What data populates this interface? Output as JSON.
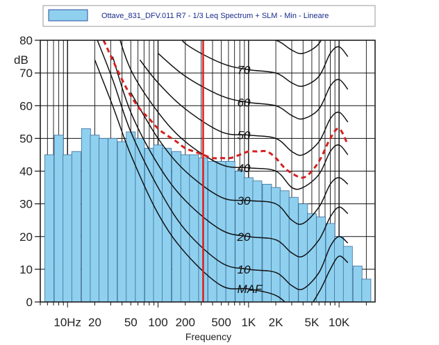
{
  "chart_data": {
    "type": "bar",
    "legend": {
      "label": "Ottave_831_DFV.011 R7 - 1/3 Leq Spectrum + SLM - Min - Lineare",
      "color": "#8fd0ef",
      "placement": "top"
    },
    "xlabel": "Frequency",
    "ylabel": "dB",
    "ylim": [
      0,
      80
    ],
    "yticks": [
      0,
      10,
      20,
      30,
      40,
      50,
      60,
      70,
      80
    ],
    "xscale": "log",
    "xlim": [
      5,
      25000
    ],
    "xtick_labels": [
      "10Hz",
      "20",
      "50",
      "100",
      "200",
      "500",
      "1K",
      "2K",
      "5K",
      "10K"
    ],
    "xtick_values": [
      10,
      20,
      50,
      100,
      200,
      500,
      1000,
      2000,
      5000,
      10000
    ],
    "grid": true,
    "bar_color": "#8fd0ef",
    "bars": {
      "freqs": [
        6.3,
        8,
        10,
        12.5,
        16,
        20,
        25,
        31.5,
        40,
        50,
        63,
        80,
        100,
        125,
        160,
        200,
        250,
        315,
        400,
        500,
        630,
        800,
        1000,
        1250,
        1600,
        2000,
        2500,
        3150,
        4000,
        5000,
        6300,
        8000,
        10000,
        12500,
        16000,
        20000
      ],
      "values": [
        45,
        51,
        45,
        46,
        53,
        51,
        50,
        50,
        49,
        52,
        50,
        47,
        48,
        47,
        46,
        45,
        45,
        44,
        43,
        43,
        43,
        40,
        38,
        37,
        36,
        35,
        34,
        32,
        30,
        27,
        26,
        24,
        20,
        17,
        11,
        7
      ]
    },
    "marker_line": {
      "freq": 315,
      "color": "#e01b1b"
    },
    "contour_color": "#111111",
    "contours": [
      {
        "label": "MAF",
        "freqs": [
          20,
          31.5,
          50,
          100,
          200,
          500,
          1000,
          2000,
          3000,
          4000,
          6000,
          8000,
          10000,
          12500
        ],
        "values": [
          74,
          60,
          45,
          27,
          15,
          5,
          4,
          2,
          -2,
          -4,
          3,
          10,
          14,
          12
        ]
      },
      {
        "label": "10",
        "freqs": [
          20,
          31.5,
          50,
          100,
          200,
          500,
          1000,
          2000,
          3000,
          4000,
          6000,
          8000,
          10000,
          12500
        ],
        "values": [
          82,
          68,
          52,
          35,
          22,
          12,
          10,
          9,
          5,
          4,
          9,
          17,
          20,
          18
        ]
      },
      {
        "label": "20",
        "freqs": [
          31.5,
          50,
          100,
          200,
          500,
          1000,
          2000,
          3000,
          4000,
          6000,
          8000,
          10000,
          12500
        ],
        "values": [
          75,
          58,
          42,
          31,
          22,
          20,
          19,
          15,
          14,
          19,
          26,
          29,
          27
        ]
      },
      {
        "label": "30",
        "freqs": [
          50,
          100,
          200,
          500,
          1000,
          2000,
          3000,
          4000,
          6000,
          8000,
          10000,
          12500
        ],
        "values": [
          64,
          50,
          40,
          32,
          31,
          30,
          25,
          24,
          29,
          36,
          38,
          36
        ]
      },
      {
        "label": "40",
        "freqs": [
          20,
          31.5,
          50,
          100,
          200,
          500,
          1000,
          2000,
          3000,
          4000,
          6000,
          8000,
          10000,
          12500
        ],
        "values": [
          100,
          87,
          71,
          58,
          49,
          42,
          41,
          40,
          35,
          35,
          39,
          46,
          48,
          45
        ]
      },
      {
        "label": "50",
        "freqs": [
          63,
          100,
          200,
          500,
          1000,
          2000,
          3000,
          4000,
          6000,
          8000,
          10000,
          12500
        ],
        "values": [
          74,
          67,
          59,
          52,
          51,
          50,
          46,
          45,
          49,
          56,
          58,
          55
        ]
      },
      {
        "label": "60",
        "freqs": [
          100,
          200,
          500,
          1000,
          2000,
          3000,
          4000,
          6000,
          8000,
          10000,
          12500
        ],
        "values": [
          76,
          69,
          63,
          61,
          60,
          57,
          56,
          59,
          66,
          68,
          65
        ]
      },
      {
        "label": "70",
        "freqs": [
          160,
          200,
          500,
          1000,
          2000,
          3000,
          4000,
          6000,
          8000,
          10000,
          12500
        ],
        "values": [
          84,
          79,
          73,
          71,
          70,
          67,
          66,
          69,
          76,
          78,
          75
        ]
      },
      {
        "label": "",
        "freqs": [
          300,
          500,
          1000,
          2000,
          3000,
          4000,
          6000,
          8000,
          10000,
          12500
        ],
        "values": [
          86,
          83,
          81,
          80,
          77,
          76,
          79,
          86,
          88,
          85
        ]
      }
    ],
    "dashed_curve": {
      "color": "#d42020",
      "freqs": [
        25,
        31.5,
        40,
        50,
        63,
        80,
        100,
        125,
        160,
        200,
        250,
        315,
        400,
        500,
        630,
        800,
        1000,
        1250,
        1600,
        2000,
        2500,
        3150,
        4000,
        5000,
        6300,
        8000,
        10000,
        12500
      ],
      "values": [
        80,
        74,
        68,
        63,
        59,
        56,
        53,
        51,
        49,
        47,
        46,
        45,
        44,
        44,
        44,
        45,
        46,
        46,
        46,
        44,
        41,
        39,
        38,
        40,
        44,
        50,
        53,
        48
      ]
    }
  }
}
